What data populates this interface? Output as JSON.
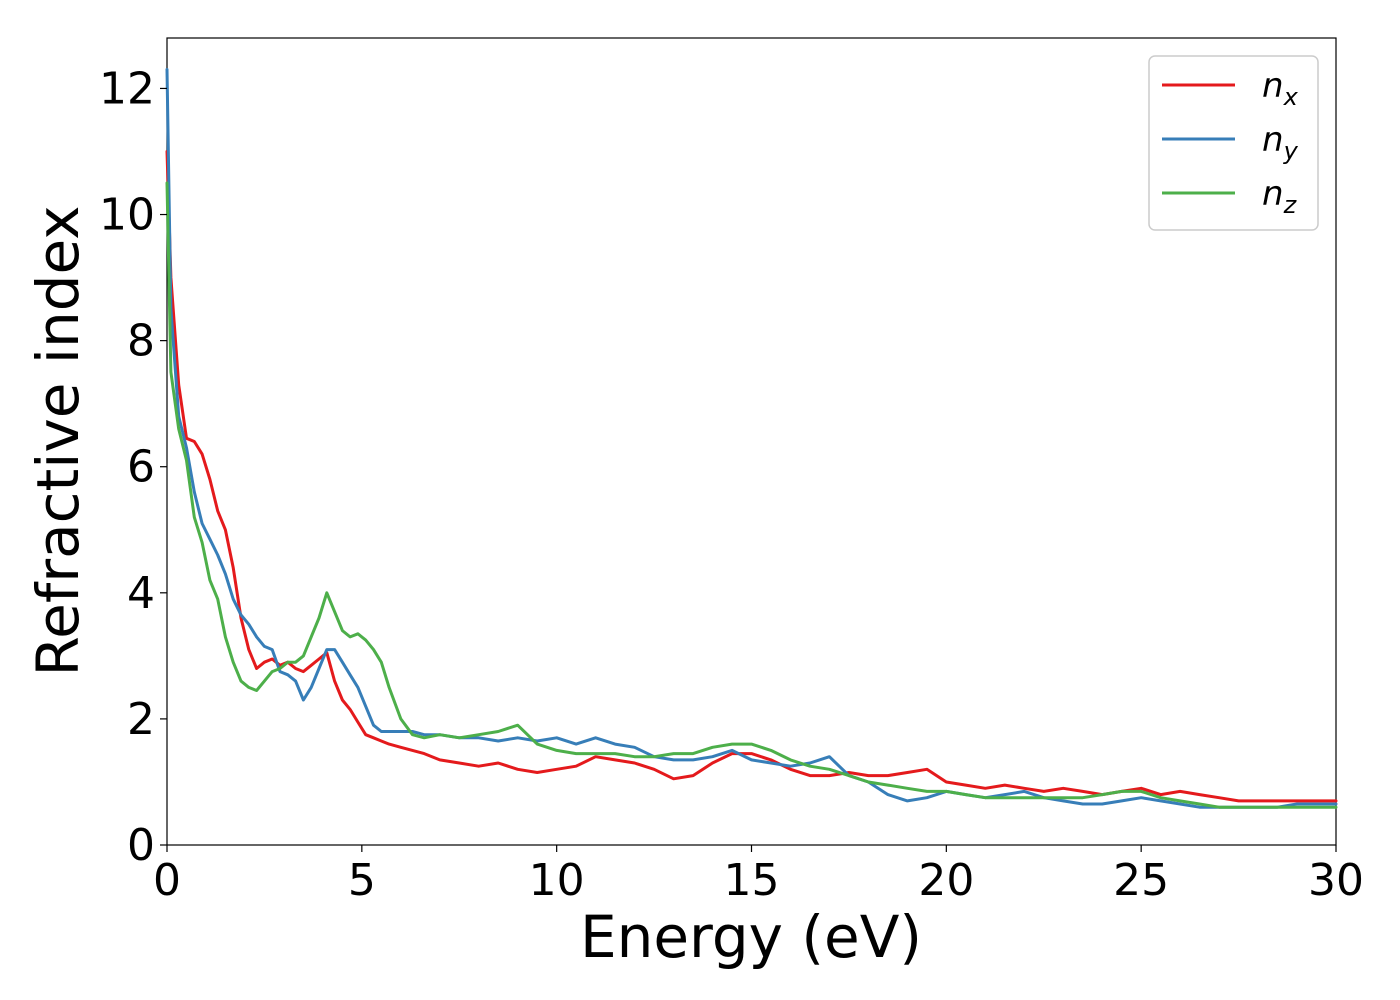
{
  "chart_data": {
    "type": "line",
    "title": "",
    "xlabel": "Energy (eV)",
    "ylabel": "Refractive index",
    "xlim": [
      0,
      30
    ],
    "ylim": [
      0,
      12.8
    ],
    "xticks": [
      0,
      5,
      10,
      15,
      20,
      25,
      30
    ],
    "yticks": [
      0,
      2,
      4,
      6,
      8,
      10,
      12
    ],
    "grid": false,
    "legend_position": "top-right",
    "colors": {
      "nx": "#e41a1c",
      "ny": "#377eb8",
      "nz": "#4daf4a"
    },
    "series": [
      {
        "key": "nx",
        "name": "n",
        "subscript": "x",
        "x": [
          0,
          0.1,
          0.3,
          0.5,
          0.7,
          0.9,
          1.1,
          1.3,
          1.5,
          1.7,
          1.9,
          2.1,
          2.3,
          2.5,
          2.7,
          2.9,
          3.1,
          3.3,
          3.5,
          3.7,
          3.9,
          4.1,
          4.3,
          4.5,
          4.7,
          4.9,
          5.1,
          5.3,
          5.5,
          5.7,
          6.0,
          6.3,
          6.6,
          7.0,
          7.5,
          8.0,
          8.5,
          9.0,
          9.5,
          10.0,
          10.5,
          11.0,
          11.5,
          12.0,
          12.5,
          13.0,
          13.5,
          14.0,
          14.5,
          15.0,
          15.5,
          16.0,
          16.5,
          17.0,
          17.5,
          18.0,
          18.5,
          19.0,
          19.5,
          20.0,
          20.5,
          21.0,
          21.5,
          22.0,
          22.5,
          23.0,
          23.5,
          24.0,
          24.5,
          25.0,
          25.5,
          26.0,
          26.5,
          27.0,
          27.5,
          28.0,
          28.5,
          29.0,
          29.5,
          30.0
        ],
        "values": [
          11.0,
          9.0,
          7.3,
          6.45,
          6.4,
          6.2,
          5.8,
          5.3,
          5.0,
          4.4,
          3.6,
          3.1,
          2.8,
          2.9,
          2.95,
          2.85,
          2.9,
          2.8,
          2.75,
          2.85,
          2.95,
          3.05,
          2.6,
          2.3,
          2.15,
          1.95,
          1.75,
          1.7,
          1.65,
          1.6,
          1.55,
          1.5,
          1.45,
          1.35,
          1.3,
          1.25,
          1.3,
          1.2,
          1.15,
          1.2,
          1.25,
          1.4,
          1.35,
          1.3,
          1.2,
          1.05,
          1.1,
          1.3,
          1.45,
          1.45,
          1.35,
          1.2,
          1.1,
          1.1,
          1.15,
          1.1,
          1.1,
          1.15,
          1.2,
          1.0,
          0.95,
          0.9,
          0.95,
          0.9,
          0.85,
          0.9,
          0.85,
          0.8,
          0.85,
          0.9,
          0.8,
          0.85,
          0.8,
          0.75,
          0.7,
          0.7,
          0.7,
          0.7,
          0.7,
          0.7
        ]
      },
      {
        "key": "ny",
        "name": "n",
        "subscript": "y",
        "x": [
          0,
          0.1,
          0.3,
          0.5,
          0.7,
          0.9,
          1.1,
          1.3,
          1.5,
          1.7,
          1.9,
          2.1,
          2.3,
          2.5,
          2.7,
          2.9,
          3.1,
          3.3,
          3.5,
          3.7,
          3.9,
          4.1,
          4.3,
          4.5,
          4.7,
          4.9,
          5.1,
          5.3,
          5.5,
          5.7,
          6.0,
          6.3,
          6.6,
          7.0,
          7.5,
          8.0,
          8.5,
          9.0,
          9.5,
          10.0,
          10.5,
          11.0,
          11.5,
          12.0,
          12.5,
          13.0,
          13.5,
          14.0,
          14.5,
          15.0,
          15.5,
          16.0,
          16.5,
          17.0,
          17.5,
          18.0,
          18.5,
          19.0,
          19.5,
          20.0,
          20.5,
          21.0,
          21.5,
          22.0,
          22.5,
          23.0,
          23.5,
          24.0,
          24.5,
          25.0,
          25.5,
          26.0,
          26.5,
          27.0,
          27.5,
          28.0,
          28.5,
          29.0,
          29.5,
          30.0
        ],
        "values": [
          12.3,
          8.5,
          6.8,
          6.3,
          5.6,
          5.1,
          4.85,
          4.6,
          4.3,
          3.9,
          3.65,
          3.5,
          3.3,
          3.15,
          3.1,
          2.75,
          2.7,
          2.6,
          2.3,
          2.5,
          2.8,
          3.1,
          3.1,
          2.9,
          2.7,
          2.5,
          2.2,
          1.9,
          1.8,
          1.8,
          1.8,
          1.8,
          1.75,
          1.75,
          1.7,
          1.7,
          1.65,
          1.7,
          1.65,
          1.7,
          1.6,
          1.7,
          1.6,
          1.55,
          1.4,
          1.35,
          1.35,
          1.4,
          1.5,
          1.35,
          1.3,
          1.25,
          1.3,
          1.4,
          1.1,
          1.0,
          0.8,
          0.7,
          0.75,
          0.85,
          0.8,
          0.75,
          0.8,
          0.85,
          0.75,
          0.7,
          0.65,
          0.65,
          0.7,
          0.75,
          0.7,
          0.65,
          0.6,
          0.6,
          0.6,
          0.6,
          0.6,
          0.65,
          0.65,
          0.65
        ]
      },
      {
        "key": "nz",
        "name": "n",
        "subscript": "z",
        "x": [
          0,
          0.1,
          0.3,
          0.5,
          0.7,
          0.9,
          1.1,
          1.3,
          1.5,
          1.7,
          1.9,
          2.1,
          2.3,
          2.5,
          2.7,
          2.9,
          3.1,
          3.3,
          3.5,
          3.7,
          3.9,
          4.1,
          4.3,
          4.5,
          4.7,
          4.9,
          5.1,
          5.3,
          5.5,
          5.7,
          6.0,
          6.3,
          6.6,
          7.0,
          7.5,
          8.0,
          8.5,
          9.0,
          9.5,
          10.0,
          10.5,
          11.0,
          11.5,
          12.0,
          12.5,
          13.0,
          13.5,
          14.0,
          14.5,
          15.0,
          15.5,
          16.0,
          16.5,
          17.0,
          17.5,
          18.0,
          18.5,
          19.0,
          19.5,
          20.0,
          20.5,
          21.0,
          21.5,
          22.0,
          22.5,
          23.0,
          23.5,
          24.0,
          24.5,
          25.0,
          25.5,
          26.0,
          26.5,
          27.0,
          27.5,
          28.0,
          28.5,
          29.0,
          29.5,
          30.0
        ],
        "values": [
          10.5,
          7.5,
          6.6,
          6.1,
          5.2,
          4.8,
          4.2,
          3.9,
          3.3,
          2.9,
          2.6,
          2.5,
          2.45,
          2.6,
          2.75,
          2.8,
          2.9,
          2.9,
          3.0,
          3.3,
          3.6,
          4.0,
          3.7,
          3.4,
          3.3,
          3.35,
          3.25,
          3.1,
          2.9,
          2.5,
          2.0,
          1.75,
          1.7,
          1.75,
          1.7,
          1.75,
          1.8,
          1.9,
          1.6,
          1.5,
          1.45,
          1.45,
          1.45,
          1.4,
          1.4,
          1.45,
          1.45,
          1.55,
          1.6,
          1.6,
          1.5,
          1.35,
          1.25,
          1.2,
          1.1,
          1.0,
          0.95,
          0.9,
          0.85,
          0.85,
          0.8,
          0.75,
          0.75,
          0.75,
          0.75,
          0.75,
          0.75,
          0.8,
          0.85,
          0.85,
          0.75,
          0.7,
          0.65,
          0.6,
          0.6,
          0.6,
          0.6,
          0.6,
          0.6,
          0.6
        ]
      }
    ]
  }
}
